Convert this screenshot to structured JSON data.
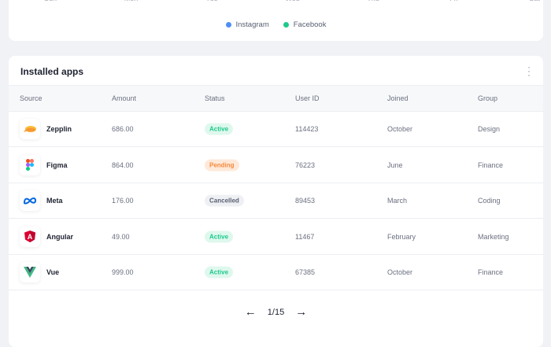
{
  "chart": {
    "days": [
      "Sun",
      "Mon",
      "Tue",
      "Wed",
      "Thu",
      "Fri",
      "Sat"
    ],
    "legend": [
      {
        "label": "Instagram",
        "color": "#4f8ef7"
      },
      {
        "label": "Facebook",
        "color": "#1ec98b"
      }
    ]
  },
  "apps": {
    "title": "Installed apps",
    "columns": [
      "Source",
      "Amount",
      "Status",
      "User ID",
      "Joined",
      "Group"
    ],
    "rows": [
      {
        "source": "Zepplin",
        "icon": "zeplin-icon",
        "amount": "686.00",
        "status": "Active",
        "user_id": "114423",
        "joined": "October",
        "group": "Design"
      },
      {
        "source": "Figma",
        "icon": "figma-icon",
        "amount": "864.00",
        "status": "Pending",
        "user_id": "76223",
        "joined": "June",
        "group": "Finance"
      },
      {
        "source": "Meta",
        "icon": "meta-icon",
        "amount": "176.00",
        "status": "Cancelled",
        "user_id": "89453",
        "joined": "March",
        "group": "Coding"
      },
      {
        "source": "Angular",
        "icon": "angular-icon",
        "amount": "49.00",
        "status": "Active",
        "user_id": "11467",
        "joined": "February",
        "group": "Marketing"
      },
      {
        "source": "Vue",
        "icon": "vue-icon",
        "amount": "999.00",
        "status": "Active",
        "user_id": "67385",
        "joined": "October",
        "group": "Finance"
      }
    ],
    "status_colors": {
      "Active": {
        "bg": "#dff8ee",
        "fg": "#1ec98b"
      },
      "Pending": {
        "bg": "#ffe9d9",
        "fg": "#f58a3c"
      },
      "Cancelled": {
        "bg": "#eef0f4",
        "fg": "#5a6072"
      }
    },
    "pagination": {
      "label": "1/15"
    }
  }
}
